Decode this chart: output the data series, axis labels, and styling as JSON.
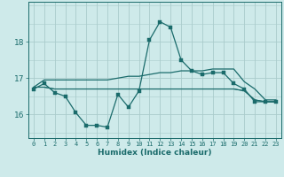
{
  "xlabel": "Humidex (Indice chaleur)",
  "bg_color": "#ceeaea",
  "grid_color": "#aacccc",
  "line_color": "#1a6b6b",
  "x": [
    0,
    1,
    2,
    3,
    4,
    5,
    6,
    7,
    8,
    9,
    10,
    11,
    12,
    13,
    14,
    15,
    16,
    17,
    18,
    19,
    20,
    21,
    22,
    23
  ],
  "line1": [
    16.7,
    16.85,
    16.6,
    16.5,
    16.05,
    15.7,
    15.7,
    15.65,
    16.55,
    16.2,
    16.65,
    18.05,
    18.55,
    18.4,
    17.5,
    17.2,
    17.1,
    17.15,
    17.15,
    16.85,
    16.7,
    16.35,
    16.35,
    16.35
  ],
  "line2": [
    16.75,
    16.75,
    16.7,
    16.7,
    16.7,
    16.7,
    16.7,
    16.7,
    16.7,
    16.7,
    16.7,
    16.7,
    16.7,
    16.7,
    16.7,
    16.7,
    16.7,
    16.7,
    16.7,
    16.7,
    16.65,
    16.4,
    16.35,
    16.35
  ],
  "line3": [
    16.75,
    16.95,
    16.95,
    16.95,
    16.95,
    16.95,
    16.95,
    16.95,
    17.0,
    17.05,
    17.05,
    17.1,
    17.15,
    17.15,
    17.2,
    17.2,
    17.2,
    17.25,
    17.25,
    17.25,
    16.9,
    16.7,
    16.4,
    16.4
  ],
  "line4": [
    16.75,
    16.75,
    16.7,
    16.7,
    16.7,
    16.7,
    16.7,
    16.7,
    16.7,
    16.7,
    16.7,
    16.7,
    16.7,
    16.7,
    16.7,
    16.7,
    16.7,
    16.7,
    16.7,
    16.7,
    16.65,
    16.4,
    16.35,
    16.35
  ],
  "ylim": [
    15.35,
    19.1
  ],
  "yticks": [
    16,
    17,
    18
  ],
  "xticks": [
    0,
    1,
    2,
    3,
    4,
    5,
    6,
    7,
    8,
    9,
    10,
    11,
    12,
    13,
    14,
    15,
    16,
    17,
    18,
    19,
    20,
    21,
    22,
    23
  ]
}
